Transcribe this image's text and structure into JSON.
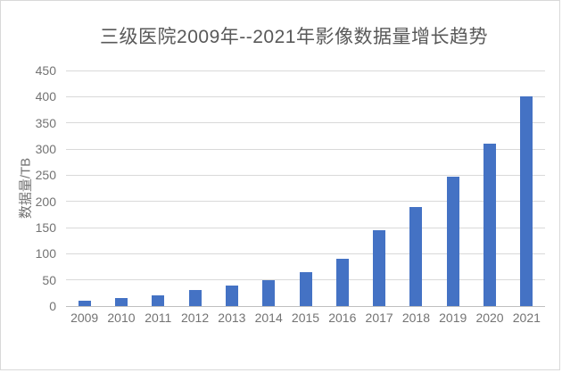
{
  "chart_data": {
    "type": "bar",
    "title": "三级医院2009年--2021年影像数据量增长趋势",
    "categories": [
      "2009",
      "2010",
      "2011",
      "2012",
      "2013",
      "2014",
      "2015",
      "2016",
      "2017",
      "2018",
      "2019",
      "2020",
      "2021"
    ],
    "values": [
      10,
      15,
      20,
      30,
      40,
      50,
      65,
      90,
      145,
      190,
      248,
      310,
      400
    ],
    "xlabel": "",
    "ylabel": "数据量/TB",
    "ylim": [
      0,
      450
    ],
    "ytick_step": 50,
    "grid": "horizontal",
    "legend": "none",
    "bar_color": "#4472C4",
    "colors": {
      "title_text": "#595959",
      "tick_text": "#737373",
      "gridline": "#d9d9d9",
      "axis_line": "#bfbfbf",
      "frame_border": "#d9d9d9",
      "background": "#ffffff"
    }
  }
}
